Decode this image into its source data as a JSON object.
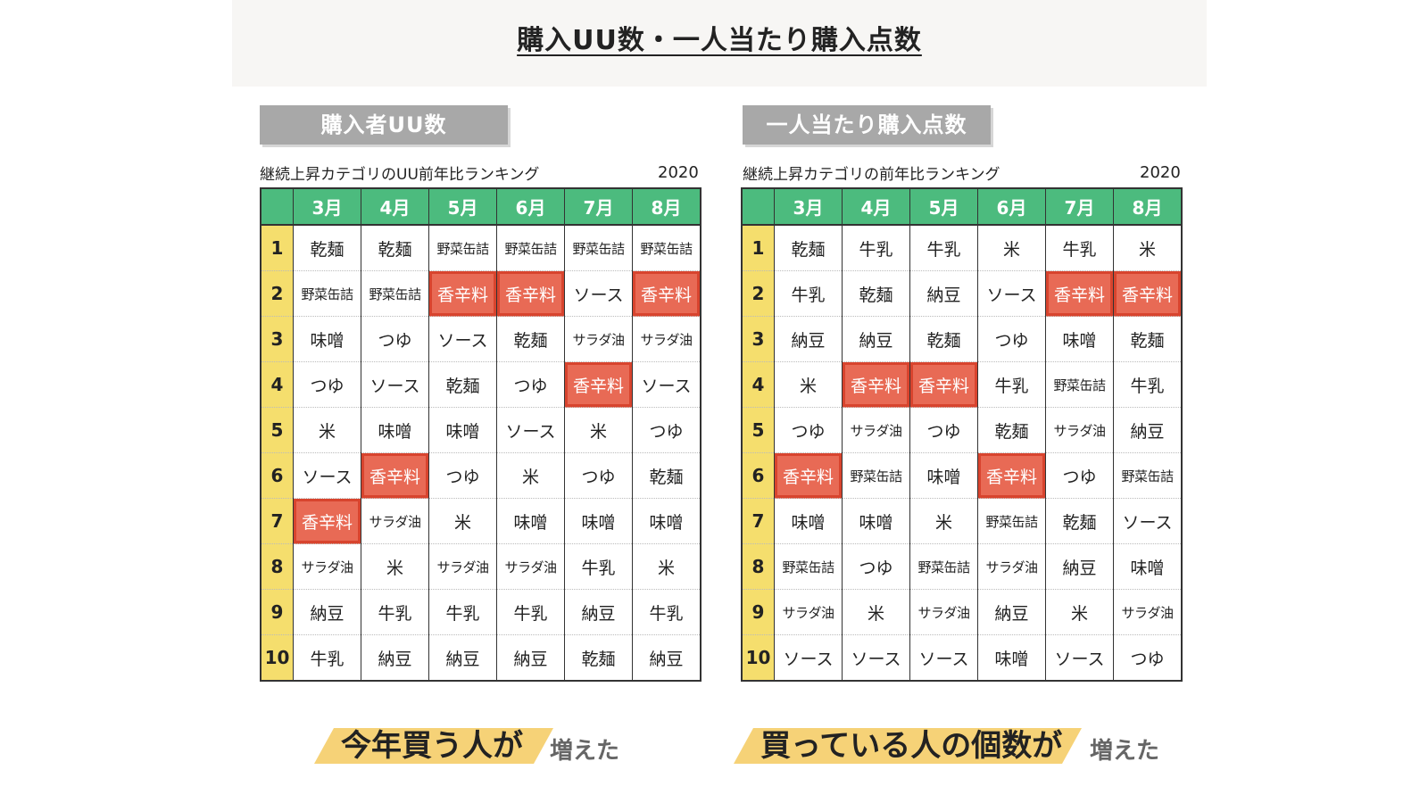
{
  "title": "購入UU数・一人当たり購入点数",
  "chart_data": [
    {
      "type": "table",
      "label": "購入者UU数",
      "title": "継続上昇カテゴリのUU前年比ランキング",
      "year": "2020",
      "columns": [
        "3月",
        "4月",
        "5月",
        "6月",
        "7月",
        "8月"
      ],
      "ranks": [
        "1",
        "2",
        "3",
        "4",
        "5",
        "6",
        "7",
        "8",
        "9",
        "10"
      ],
      "rows": [
        [
          "乾麺",
          "乾麺",
          "野菜缶詰",
          "野菜缶詰",
          "野菜缶詰",
          "野菜缶詰"
        ],
        [
          "野菜缶詰",
          "野菜缶詰",
          "香辛料",
          "香辛料",
          "ソース",
          "香辛料"
        ],
        [
          "味噌",
          "つゆ",
          "ソース",
          "乾麺",
          "サラダ油",
          "サラダ油"
        ],
        [
          "つゆ",
          "ソース",
          "乾麺",
          "つゆ",
          "香辛料",
          "ソース"
        ],
        [
          "米",
          "味噌",
          "味噌",
          "ソース",
          "米",
          "つゆ"
        ],
        [
          "ソース",
          "香辛料",
          "つゆ",
          "米",
          "つゆ",
          "乾麺"
        ],
        [
          "香辛料",
          "サラダ油",
          "米",
          "味噌",
          "味噌",
          "味噌"
        ],
        [
          "サラダ油",
          "米",
          "サラダ油",
          "サラダ油",
          "牛乳",
          "米"
        ],
        [
          "納豆",
          "牛乳",
          "牛乳",
          "牛乳",
          "納豆",
          "牛乳"
        ],
        [
          "牛乳",
          "納豆",
          "納豆",
          "納豆",
          "乾麺",
          "納豆"
        ]
      ],
      "highlight": "香辛料",
      "highlight_color": "#e86a55"
    },
    {
      "type": "table",
      "label": "一人当たり購入点数",
      "title": "継続上昇カテゴリの前年比ランキング",
      "year": "2020",
      "columns": [
        "3月",
        "4月",
        "5月",
        "6月",
        "7月",
        "8月"
      ],
      "ranks": [
        "1",
        "2",
        "3",
        "4",
        "5",
        "6",
        "7",
        "8",
        "9",
        "10"
      ],
      "rows": [
        [
          "乾麺",
          "牛乳",
          "牛乳",
          "米",
          "牛乳",
          "米"
        ],
        [
          "牛乳",
          "乾麺",
          "納豆",
          "ソース",
          "香辛料",
          "香辛料"
        ],
        [
          "納豆",
          "納豆",
          "乾麺",
          "つゆ",
          "味噌",
          "乾麺"
        ],
        [
          "米",
          "香辛料",
          "香辛料",
          "牛乳",
          "野菜缶詰",
          "牛乳"
        ],
        [
          "つゆ",
          "サラダ油",
          "つゆ",
          "乾麺",
          "サラダ油",
          "納豆"
        ],
        [
          "香辛料",
          "野菜缶詰",
          "味噌",
          "香辛料",
          "つゆ",
          "野菜缶詰"
        ],
        [
          "味噌",
          "味噌",
          "米",
          "野菜缶詰",
          "乾麺",
          "ソース"
        ],
        [
          "野菜缶詰",
          "つゆ",
          "野菜缶詰",
          "サラダ油",
          "納豆",
          "味噌"
        ],
        [
          "サラダ油",
          "米",
          "サラダ油",
          "納豆",
          "米",
          "サラダ油"
        ],
        [
          "ソース",
          "ソース",
          "ソース",
          "味噌",
          "ソース",
          "つゆ"
        ]
      ],
      "highlight": "香辛料",
      "highlight_color": "#e86a55"
    }
  ],
  "footer": {
    "left_big": "今年買う人が",
    "left_small": "増えた",
    "right_big": "買っている人の個数が",
    "right_small": "増えた"
  }
}
